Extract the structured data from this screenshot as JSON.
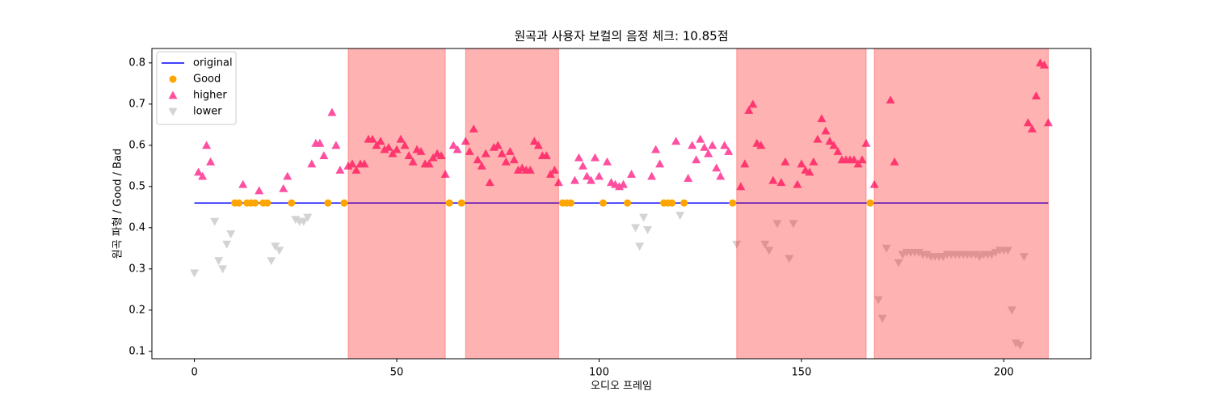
{
  "chart_data": {
    "type": "scatter",
    "title": "원곡과 사용자 보컬의 음정 체크: 10.85점",
    "xlabel": "오디오 프레임",
    "ylabel": "원곡 파형 / Good / Bad",
    "xlim": [
      -10.5,
      221.5
    ],
    "ylim": [
      0.082,
      0.835
    ],
    "xticks": [
      0,
      50,
      100,
      150,
      200
    ],
    "yticks": [
      0.1,
      0.2,
      0.3,
      0.4,
      0.5,
      0.6,
      0.7,
      0.8
    ],
    "legend": "upper left",
    "span_color": "#ff0000",
    "span_alpha": 0.3,
    "spans": [
      [
        38,
        62
      ],
      [
        67,
        90
      ],
      [
        134,
        166
      ],
      [
        168,
        211
      ]
    ],
    "series": [
      {
        "name": "original",
        "marker": "line",
        "color": "#0000ff",
        "x": [
          0,
          211
        ],
        "values": [
          0.46,
          0.46
        ]
      },
      {
        "name": "Good",
        "marker": "o",
        "color": "#ffa500",
        "x": [
          10,
          11,
          13,
          14,
          15,
          17,
          18,
          24,
          33,
          37,
          63,
          66,
          91,
          92,
          93,
          101,
          107,
          116,
          117,
          118,
          121,
          133,
          167
        ],
        "values": [
          0.46,
          0.46,
          0.46,
          0.46,
          0.46,
          0.46,
          0.46,
          0.46,
          0.46,
          0.46,
          0.46,
          0.46,
          0.46,
          0.46,
          0.46,
          0.46,
          0.46,
          0.46,
          0.46,
          0.46,
          0.46,
          0.46,
          0.46
        ]
      },
      {
        "name": "higher",
        "marker": "^",
        "color": "#ff4fa0",
        "x": [
          1,
          2,
          3,
          4,
          12,
          16,
          22,
          23,
          29,
          30,
          31,
          32,
          34,
          35,
          36,
          38,
          39,
          40,
          41,
          42,
          43,
          44,
          45,
          46,
          47,
          48,
          49,
          50,
          51,
          52,
          53,
          54,
          55,
          56,
          57,
          58,
          59,
          60,
          61,
          62,
          64,
          65,
          67,
          68,
          69,
          70,
          71,
          72,
          73,
          74,
          75,
          76,
          77,
          78,
          79,
          80,
          81,
          82,
          83,
          84,
          85,
          86,
          87,
          88,
          89,
          90,
          94,
          95,
          96,
          97,
          98,
          99,
          100,
          102,
          103,
          104,
          105,
          106,
          108,
          113,
          114,
          115,
          119,
          122,
          123,
          124,
          125,
          126,
          127,
          128,
          129,
          130,
          131,
          132,
          135,
          136,
          137,
          138,
          139,
          140,
          143,
          145,
          146,
          149,
          150,
          151,
          152,
          153,
          154,
          155,
          156,
          157,
          158,
          159,
          160,
          161,
          162,
          163,
          164,
          165,
          166,
          168,
          172,
          173,
          206,
          207,
          208,
          209,
          210,
          211
        ],
        "values": [
          0.535,
          0.525,
          0.6,
          0.56,
          0.505,
          0.49,
          0.495,
          0.525,
          0.555,
          0.605,
          0.605,
          0.575,
          0.68,
          0.6,
          0.54,
          0.55,
          0.555,
          0.54,
          0.555,
          0.555,
          0.615,
          0.615,
          0.6,
          0.61,
          0.59,
          0.595,
          0.58,
          0.59,
          0.615,
          0.6,
          0.575,
          0.56,
          0.59,
          0.585,
          0.555,
          0.555,
          0.57,
          0.58,
          0.575,
          0.53,
          0.6,
          0.59,
          0.61,
          0.585,
          0.64,
          0.565,
          0.55,
          0.58,
          0.51,
          0.595,
          0.6,
          0.58,
          0.56,
          0.585,
          0.565,
          0.54,
          0.545,
          0.54,
          0.54,
          0.61,
          0.6,
          0.575,
          0.575,
          0.53,
          0.54,
          0.51,
          0.515,
          0.57,
          0.55,
          0.525,
          0.515,
          0.57,
          0.525,
          0.56,
          0.51,
          0.505,
          0.5,
          0.505,
          0.53,
          0.525,
          0.59,
          0.555,
          0.61,
          0.52,
          0.6,
          0.565,
          0.615,
          0.595,
          0.58,
          0.6,
          0.545,
          0.525,
          0.6,
          0.585,
          0.5,
          0.555,
          0.685,
          0.7,
          0.605,
          0.6,
          0.515,
          0.51,
          0.56,
          0.505,
          0.555,
          0.54,
          0.535,
          0.56,
          0.615,
          0.665,
          0.635,
          0.61,
          0.6,
          0.585,
          0.565,
          0.565,
          0.565,
          0.565,
          0.555,
          0.565,
          0.605,
          0.505,
          0.71,
          0.56,
          0.655,
          0.64,
          0.72,
          0.8,
          0.795,
          0.655
        ]
      },
      {
        "name": "lower",
        "marker": "v",
        "color": "#d3d3d3",
        "x": [
          0,
          5,
          6,
          7,
          8,
          9,
          19,
          20,
          21,
          25,
          26,
          27,
          28,
          109,
          110,
          111,
          112,
          120,
          134,
          141,
          142,
          144,
          147,
          148,
          169,
          170,
          171,
          174,
          175,
          176,
          177,
          178,
          179,
          180,
          181,
          182,
          183,
          184,
          185,
          186,
          187,
          188,
          189,
          190,
          191,
          192,
          193,
          194,
          195,
          196,
          197,
          198,
          199,
          200,
          201,
          202,
          203,
          204,
          205
        ],
        "values": [
          0.29,
          0.415,
          0.32,
          0.3,
          0.36,
          0.385,
          0.32,
          0.355,
          0.345,
          0.42,
          0.415,
          0.415,
          0.425,
          0.4,
          0.355,
          0.425,
          0.395,
          0.43,
          0.36,
          0.36,
          0.345,
          0.41,
          0.325,
          0.41,
          0.225,
          0.18,
          0.35,
          0.315,
          0.335,
          0.34,
          0.34,
          0.34,
          0.34,
          0.335,
          0.335,
          0.33,
          0.33,
          0.33,
          0.33,
          0.335,
          0.335,
          0.335,
          0.335,
          0.335,
          0.335,
          0.335,
          0.335,
          0.33,
          0.335,
          0.335,
          0.335,
          0.34,
          0.345,
          0.345,
          0.345,
          0.2,
          0.12,
          0.115,
          0.33
        ]
      }
    ]
  }
}
